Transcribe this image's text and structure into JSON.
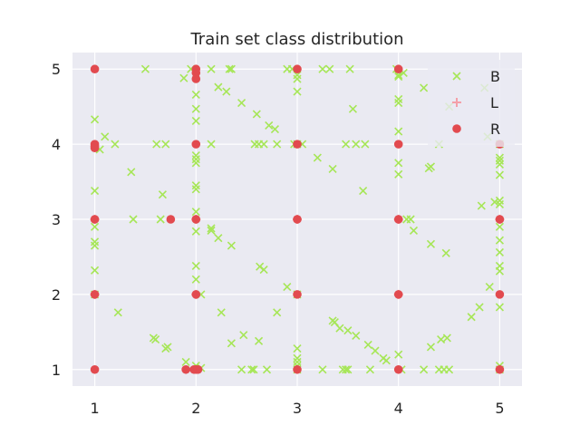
{
  "chart_data": {
    "type": "scatter",
    "title": "Train set class distribution",
    "xlabel": "",
    "ylabel": "",
    "xlim": [
      0.78,
      5.22
    ],
    "ylim": [
      0.78,
      5.22
    ],
    "xticks": [
      "1",
      "2",
      "3",
      "4",
      "5"
    ],
    "yticks": [
      "1",
      "2",
      "3",
      "4",
      "5"
    ],
    "grid": true,
    "legend_position": "top-right",
    "colors": {
      "plot_bg": "#EAEAF2",
      "grid": "#FFFFFF",
      "B": "#A6E657",
      "L": "#F4A0A8",
      "R": "#E24A4F"
    },
    "series": [
      {
        "name": "B",
        "marker": "x",
        "points": [
          [
            1.0,
            4.33
          ],
          [
            1.0,
            3.38
          ],
          [
            1.0,
            2.9
          ],
          [
            1.0,
            2.7
          ],
          [
            1.0,
            2.65
          ],
          [
            1.0,
            2.32
          ],
          [
            1.0,
            2.0
          ],
          [
            1.05,
            3.93
          ],
          [
            1.1,
            4.1
          ],
          [
            1.2,
            4.0
          ],
          [
            1.23,
            1.76
          ],
          [
            1.36,
            3.63
          ],
          [
            1.38,
            3.0
          ],
          [
            1.5,
            5.0
          ],
          [
            1.58,
            1.42
          ],
          [
            1.6,
            1.4
          ],
          [
            1.61,
            4.0
          ],
          [
            1.65,
            3.0
          ],
          [
            1.67,
            3.33
          ],
          [
            1.7,
            4.0
          ],
          [
            1.72,
            1.3
          ],
          [
            1.7,
            1.28
          ],
          [
            1.88,
            4.88
          ],
          [
            1.9,
            1.1
          ],
          [
            1.95,
            5.0
          ],
          [
            2.0,
            4.66
          ],
          [
            2.0,
            4.47
          ],
          [
            2.0,
            4.31
          ],
          [
            2.0,
            3.85
          ],
          [
            2.0,
            3.8
          ],
          [
            2.0,
            3.75
          ],
          [
            2.0,
            3.45
          ],
          [
            2.0,
            3.4
          ],
          [
            2.0,
            3.1
          ],
          [
            2.0,
            2.84
          ],
          [
            2.0,
            2.38
          ],
          [
            2.0,
            2.2
          ],
          [
            2.05,
            2.0
          ],
          [
            2.0,
            1.05
          ],
          [
            2.05,
            1.02
          ],
          [
            2.15,
            4.0
          ],
          [
            2.15,
            2.88
          ],
          [
            2.15,
            2.85
          ],
          [
            2.15,
            5.0
          ],
          [
            2.22,
            4.76
          ],
          [
            2.22,
            2.75
          ],
          [
            2.25,
            1.76
          ],
          [
            2.3,
            4.7
          ],
          [
            2.33,
            5.0
          ],
          [
            2.35,
            5.0
          ],
          [
            2.35,
            2.65
          ],
          [
            2.35,
            1.35
          ],
          [
            2.45,
            4.55
          ],
          [
            2.45,
            1.0
          ],
          [
            2.47,
            1.46
          ],
          [
            2.55,
            1.0
          ],
          [
            2.57,
            1.0
          ],
          [
            2.58,
            4.0
          ],
          [
            2.6,
            4.4
          ],
          [
            2.62,
            1.38
          ],
          [
            2.62,
            4.0
          ],
          [
            2.63,
            2.37
          ],
          [
            2.67,
            2.33
          ],
          [
            2.67,
            4.0
          ],
          [
            2.7,
            1.0
          ],
          [
            2.72,
            4.25
          ],
          [
            2.78,
            4.2
          ],
          [
            2.8,
            1.76
          ],
          [
            2.8,
            4.0
          ],
          [
            2.9,
            5.0
          ],
          [
            2.9,
            2.1
          ],
          [
            2.95,
            5.0
          ],
          [
            2.97,
            4.0
          ],
          [
            3.0,
            4.92
          ],
          [
            3.0,
            4.87
          ],
          [
            3.0,
            4.7
          ],
          [
            3.0,
            4.0
          ],
          [
            3.0,
            2.0
          ],
          [
            3.0,
            1.28
          ],
          [
            3.0,
            1.15
          ],
          [
            3.0,
            1.1
          ],
          [
            3.0,
            1.05
          ],
          [
            3.0,
            1.0
          ],
          [
            3.05,
            4.0
          ],
          [
            3.2,
            3.82
          ],
          [
            3.25,
            1.0
          ],
          [
            3.25,
            5.0
          ],
          [
            3.32,
            5.0
          ],
          [
            3.35,
            3.67
          ],
          [
            3.35,
            1.65
          ],
          [
            3.37,
            1.63
          ],
          [
            3.42,
            1.55
          ],
          [
            3.45,
            1.0
          ],
          [
            3.48,
            1.0
          ],
          [
            3.48,
            4.0
          ],
          [
            3.5,
            1.52
          ],
          [
            3.5,
            1.0
          ],
          [
            3.52,
            5.0
          ],
          [
            3.55,
            4.47
          ],
          [
            3.58,
            4.0
          ],
          [
            3.58,
            1.45
          ],
          [
            3.65,
            3.38
          ],
          [
            3.67,
            4.0
          ],
          [
            3.7,
            1.33
          ],
          [
            3.72,
            1.0
          ],
          [
            3.77,
            1.25
          ],
          [
            3.85,
            1.15
          ],
          [
            3.88,
            1.12
          ],
          [
            3.98,
            5.0
          ],
          [
            4.0,
            4.92
          ],
          [
            4.0,
            4.9
          ],
          [
            4.0,
            4.6
          ],
          [
            4.0,
            4.55
          ],
          [
            4.0,
            4.17
          ],
          [
            4.0,
            3.75
          ],
          [
            4.0,
            3.6
          ],
          [
            4.0,
            1.2
          ],
          [
            4.03,
            1.0
          ],
          [
            4.05,
            4.95
          ],
          [
            4.08,
            3.0
          ],
          [
            4.12,
            3.0
          ],
          [
            4.15,
            2.85
          ],
          [
            4.25,
            4.75
          ],
          [
            4.25,
            1.0
          ],
          [
            4.3,
            3.68
          ],
          [
            4.32,
            3.7
          ],
          [
            4.32,
            2.67
          ],
          [
            4.32,
            1.3
          ],
          [
            4.4,
            4.0
          ],
          [
            4.4,
            1.0
          ],
          [
            4.42,
            1.4
          ],
          [
            4.45,
            1.0
          ],
          [
            4.47,
            2.55
          ],
          [
            4.48,
            1.42
          ],
          [
            4.5,
            1.0
          ],
          [
            4.5,
            4.5
          ],
          [
            4.72,
            1.7
          ],
          [
            4.8,
            1.83
          ],
          [
            4.82,
            3.18
          ],
          [
            4.85,
            4.75
          ],
          [
            4.88,
            4.1
          ],
          [
            4.95,
            3.23
          ],
          [
            4.9,
            2.1
          ],
          [
            5.0,
            4.0
          ],
          [
            5.0,
            3.82
          ],
          [
            5.0,
            3.78
          ],
          [
            5.0,
            3.73
          ],
          [
            5.0,
            3.59
          ],
          [
            5.0,
            3.25
          ],
          [
            5.0,
            3.2
          ],
          [
            5.0,
            2.9
          ],
          [
            5.0,
            2.72
          ],
          [
            5.0,
            2.56
          ],
          [
            5.0,
            2.38
          ],
          [
            5.0,
            2.31
          ],
          [
            5.0,
            1.83
          ],
          [
            5.0,
            1.05
          ],
          [
            5.0,
            1.0
          ]
        ]
      },
      {
        "name": "L",
        "marker": "+",
        "points": [
          [
            1.0,
            3.0
          ],
          [
            1.0,
            2.0
          ],
          [
            2.0,
            3.0
          ],
          [
            2.0,
            2.0
          ],
          [
            3.0,
            3.0
          ],
          [
            4.0,
            3.0
          ],
          [
            4.0,
            2.0
          ],
          [
            5.0,
            3.0
          ]
        ]
      },
      {
        "name": "R",
        "marker": "o",
        "points": [
          [
            1.0,
            5.0
          ],
          [
            1.0,
            4.0
          ],
          [
            1.0,
            3.97
          ],
          [
            1.0,
            3.95
          ],
          [
            1.0,
            3.0
          ],
          [
            1.0,
            2.0
          ],
          [
            1.0,
            1.0
          ],
          [
            1.75,
            3.0
          ],
          [
            1.9,
            1.0
          ],
          [
            2.0,
            5.0
          ],
          [
            2.0,
            4.95
          ],
          [
            2.0,
            4.87
          ],
          [
            2.0,
            4.0
          ],
          [
            2.0,
            3.0
          ],
          [
            2.0,
            2.0
          ],
          [
            2.0,
            1.0
          ],
          [
            1.98,
            1.0
          ],
          [
            2.02,
            1.0
          ],
          [
            3.0,
            5.0
          ],
          [
            3.0,
            4.0
          ],
          [
            3.0,
            3.0
          ],
          [
            3.0,
            2.0
          ],
          [
            3.0,
            1.0
          ],
          [
            4.0,
            5.0
          ],
          [
            4.0,
            4.0
          ],
          [
            4.0,
            3.0
          ],
          [
            4.0,
            2.0
          ],
          [
            4.0,
            1.0
          ],
          [
            5.0,
            4.0
          ],
          [
            5.0,
            3.0
          ],
          [
            5.0,
            2.0
          ],
          [
            5.0,
            1.0
          ]
        ]
      }
    ]
  }
}
